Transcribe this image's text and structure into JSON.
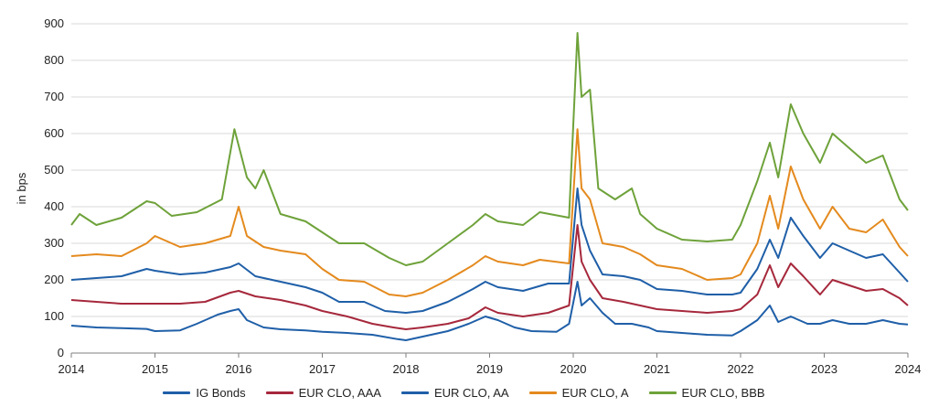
{
  "chart_data": {
    "type": "line",
    "xlabel": "",
    "ylabel": "in bps",
    "xlim": [
      2014,
      2024
    ],
    "ylim": [
      0,
      900
    ],
    "x_ticks": [
      "2014",
      "2015",
      "2016",
      "2017",
      "2018",
      "2019",
      "2020",
      "2021",
      "2022",
      "2023",
      "2024"
    ],
    "y_ticks": [
      "0",
      "100",
      "200",
      "300",
      "400",
      "500",
      "600",
      "700",
      "800",
      "900"
    ],
    "grid": "horizontal",
    "legend_position": "bottom",
    "series": [
      {
        "name": "IG Bonds",
        "color": "#1f5fa8",
        "points": [
          [
            2014.0,
            75
          ],
          [
            2014.3,
            70
          ],
          [
            2014.6,
            68
          ],
          [
            2014.9,
            66
          ],
          [
            2015.0,
            60
          ],
          [
            2015.3,
            62
          ],
          [
            2015.5,
            80
          ],
          [
            2015.75,
            105
          ],
          [
            2015.9,
            115
          ],
          [
            2016.0,
            120
          ],
          [
            2016.1,
            90
          ],
          [
            2016.3,
            70
          ],
          [
            2016.5,
            65
          ],
          [
            2016.8,
            62
          ],
          [
            2017.0,
            58
          ],
          [
            2017.3,
            55
          ],
          [
            2017.6,
            50
          ],
          [
            2017.9,
            38
          ],
          [
            2018.0,
            35
          ],
          [
            2018.2,
            45
          ],
          [
            2018.5,
            60
          ],
          [
            2018.75,
            80
          ],
          [
            2018.95,
            100
          ],
          [
            2019.1,
            90
          ],
          [
            2019.3,
            70
          ],
          [
            2019.5,
            60
          ],
          [
            2019.8,
            58
          ],
          [
            2019.95,
            80
          ],
          [
            2020.05,
            195
          ],
          [
            2020.1,
            130
          ],
          [
            2020.2,
            150
          ],
          [
            2020.35,
            110
          ],
          [
            2020.5,
            80
          ],
          [
            2020.7,
            80
          ],
          [
            2020.9,
            70
          ],
          [
            2021.0,
            60
          ],
          [
            2021.3,
            55
          ],
          [
            2021.6,
            50
          ],
          [
            2021.9,
            48
          ],
          [
            2022.0,
            60
          ],
          [
            2022.2,
            90
          ],
          [
            2022.35,
            130
          ],
          [
            2022.45,
            85
          ],
          [
            2022.6,
            100
          ],
          [
            2022.8,
            80
          ],
          [
            2022.95,
            80
          ],
          [
            2023.1,
            90
          ],
          [
            2023.3,
            80
          ],
          [
            2023.5,
            80
          ],
          [
            2023.7,
            90
          ],
          [
            2023.9,
            80
          ],
          [
            2024.0,
            78
          ]
        ]
      },
      {
        "name": "EUR CLO, AAA",
        "color": "#a6283c",
        "points": [
          [
            2014.0,
            145
          ],
          [
            2014.3,
            140
          ],
          [
            2014.6,
            135
          ],
          [
            2014.9,
            135
          ],
          [
            2015.3,
            135
          ],
          [
            2015.6,
            140
          ],
          [
            2015.9,
            165
          ],
          [
            2016.0,
            170
          ],
          [
            2016.2,
            155
          ],
          [
            2016.5,
            145
          ],
          [
            2016.8,
            130
          ],
          [
            2017.0,
            115
          ],
          [
            2017.3,
            100
          ],
          [
            2017.6,
            80
          ],
          [
            2017.85,
            70
          ],
          [
            2018.0,
            65
          ],
          [
            2018.2,
            70
          ],
          [
            2018.5,
            80
          ],
          [
            2018.75,
            95
          ],
          [
            2018.95,
            125
          ],
          [
            2019.1,
            110
          ],
          [
            2019.4,
            100
          ],
          [
            2019.7,
            110
          ],
          [
            2019.95,
            130
          ],
          [
            2020.05,
            350
          ],
          [
            2020.1,
            250
          ],
          [
            2020.2,
            200
          ],
          [
            2020.35,
            150
          ],
          [
            2020.6,
            140
          ],
          [
            2020.8,
            130
          ],
          [
            2021.0,
            120
          ],
          [
            2021.3,
            115
          ],
          [
            2021.6,
            110
          ],
          [
            2021.9,
            115
          ],
          [
            2022.0,
            120
          ],
          [
            2022.2,
            160
          ],
          [
            2022.35,
            240
          ],
          [
            2022.45,
            180
          ],
          [
            2022.6,
            245
          ],
          [
            2022.75,
            210
          ],
          [
            2022.95,
            160
          ],
          [
            2023.1,
            200
          ],
          [
            2023.3,
            185
          ],
          [
            2023.5,
            170
          ],
          [
            2023.7,
            175
          ],
          [
            2023.9,
            150
          ],
          [
            2024.0,
            130
          ]
        ]
      },
      {
        "name": "EUR CLO, AA",
        "color": "#1f5fa8",
        "points": [
          [
            2014.0,
            200
          ],
          [
            2014.3,
            205
          ],
          [
            2014.6,
            210
          ],
          [
            2014.9,
            230
          ],
          [
            2015.0,
            225
          ],
          [
            2015.3,
            215
          ],
          [
            2015.6,
            220
          ],
          [
            2015.9,
            235
          ],
          [
            2016.0,
            245
          ],
          [
            2016.2,
            210
          ],
          [
            2016.5,
            195
          ],
          [
            2016.8,
            180
          ],
          [
            2017.0,
            165
          ],
          [
            2017.2,
            140
          ],
          [
            2017.5,
            140
          ],
          [
            2017.75,
            115
          ],
          [
            2018.0,
            110
          ],
          [
            2018.2,
            115
          ],
          [
            2018.5,
            140
          ],
          [
            2018.8,
            175
          ],
          [
            2018.95,
            195
          ],
          [
            2019.1,
            180
          ],
          [
            2019.4,
            170
          ],
          [
            2019.7,
            190
          ],
          [
            2019.95,
            190
          ],
          [
            2020.05,
            450
          ],
          [
            2020.1,
            350
          ],
          [
            2020.2,
            280
          ],
          [
            2020.35,
            215
          ],
          [
            2020.6,
            210
          ],
          [
            2020.8,
            200
          ],
          [
            2021.0,
            175
          ],
          [
            2021.3,
            170
          ],
          [
            2021.6,
            160
          ],
          [
            2021.9,
            160
          ],
          [
            2022.0,
            165
          ],
          [
            2022.2,
            230
          ],
          [
            2022.35,
            310
          ],
          [
            2022.45,
            260
          ],
          [
            2022.6,
            370
          ],
          [
            2022.75,
            320
          ],
          [
            2022.95,
            260
          ],
          [
            2023.1,
            300
          ],
          [
            2023.3,
            280
          ],
          [
            2023.5,
            260
          ],
          [
            2023.7,
            270
          ],
          [
            2023.9,
            220
          ],
          [
            2024.0,
            195
          ]
        ]
      },
      {
        "name": "EUR CLO, A",
        "color": "#e48a1e",
        "points": [
          [
            2014.0,
            265
          ],
          [
            2014.3,
            270
          ],
          [
            2014.6,
            265
          ],
          [
            2014.9,
            300
          ],
          [
            2015.0,
            320
          ],
          [
            2015.3,
            290
          ],
          [
            2015.6,
            300
          ],
          [
            2015.9,
            320
          ],
          [
            2016.0,
            400
          ],
          [
            2016.1,
            320
          ],
          [
            2016.3,
            290
          ],
          [
            2016.5,
            280
          ],
          [
            2016.8,
            270
          ],
          [
            2017.0,
            230
          ],
          [
            2017.2,
            200
          ],
          [
            2017.5,
            195
          ],
          [
            2017.8,
            160
          ],
          [
            2018.0,
            155
          ],
          [
            2018.2,
            165
          ],
          [
            2018.5,
            200
          ],
          [
            2018.8,
            240
          ],
          [
            2018.95,
            265
          ],
          [
            2019.1,
            250
          ],
          [
            2019.4,
            240
          ],
          [
            2019.6,
            255
          ],
          [
            2019.95,
            245
          ],
          [
            2020.05,
            612
          ],
          [
            2020.1,
            450
          ],
          [
            2020.2,
            420
          ],
          [
            2020.35,
            300
          ],
          [
            2020.6,
            290
          ],
          [
            2020.8,
            270
          ],
          [
            2021.0,
            240
          ],
          [
            2021.3,
            230
          ],
          [
            2021.6,
            200
          ],
          [
            2021.9,
            205
          ],
          [
            2022.0,
            215
          ],
          [
            2022.2,
            300
          ],
          [
            2022.35,
            430
          ],
          [
            2022.45,
            340
          ],
          [
            2022.6,
            510
          ],
          [
            2022.75,
            420
          ],
          [
            2022.95,
            340
          ],
          [
            2023.1,
            400
          ],
          [
            2023.3,
            340
          ],
          [
            2023.5,
            330
          ],
          [
            2023.7,
            365
          ],
          [
            2023.9,
            290
          ],
          [
            2024.0,
            265
          ]
        ]
      },
      {
        "name": "EUR CLO, BBB",
        "color": "#6ea23a",
        "points": [
          [
            2014.0,
            350
          ],
          [
            2014.1,
            380
          ],
          [
            2014.3,
            350
          ],
          [
            2014.6,
            370
          ],
          [
            2014.9,
            415
          ],
          [
            2015.0,
            410
          ],
          [
            2015.2,
            375
          ],
          [
            2015.5,
            385
          ],
          [
            2015.8,
            420
          ],
          [
            2015.95,
            612
          ],
          [
            2016.1,
            480
          ],
          [
            2016.2,
            450
          ],
          [
            2016.3,
            500
          ],
          [
            2016.5,
            380
          ],
          [
            2016.8,
            360
          ],
          [
            2017.0,
            330
          ],
          [
            2017.2,
            300
          ],
          [
            2017.5,
            300
          ],
          [
            2017.8,
            260
          ],
          [
            2018.0,
            240
          ],
          [
            2018.2,
            250
          ],
          [
            2018.5,
            300
          ],
          [
            2018.8,
            350
          ],
          [
            2018.95,
            380
          ],
          [
            2019.1,
            360
          ],
          [
            2019.4,
            350
          ],
          [
            2019.6,
            385
          ],
          [
            2019.95,
            370
          ],
          [
            2020.05,
            875
          ],
          [
            2020.1,
            700
          ],
          [
            2020.2,
            720
          ],
          [
            2020.3,
            450
          ],
          [
            2020.5,
            420
          ],
          [
            2020.7,
            450
          ],
          [
            2020.8,
            380
          ],
          [
            2021.0,
            340
          ],
          [
            2021.3,
            310
          ],
          [
            2021.6,
            305
          ],
          [
            2021.9,
            310
          ],
          [
            2022.0,
            350
          ],
          [
            2022.2,
            470
          ],
          [
            2022.35,
            575
          ],
          [
            2022.45,
            480
          ],
          [
            2022.6,
            680
          ],
          [
            2022.75,
            600
          ],
          [
            2022.95,
            520
          ],
          [
            2023.1,
            600
          ],
          [
            2023.3,
            560
          ],
          [
            2023.5,
            520
          ],
          [
            2023.7,
            540
          ],
          [
            2023.9,
            420
          ],
          [
            2024.0,
            390
          ]
        ]
      }
    ]
  }
}
